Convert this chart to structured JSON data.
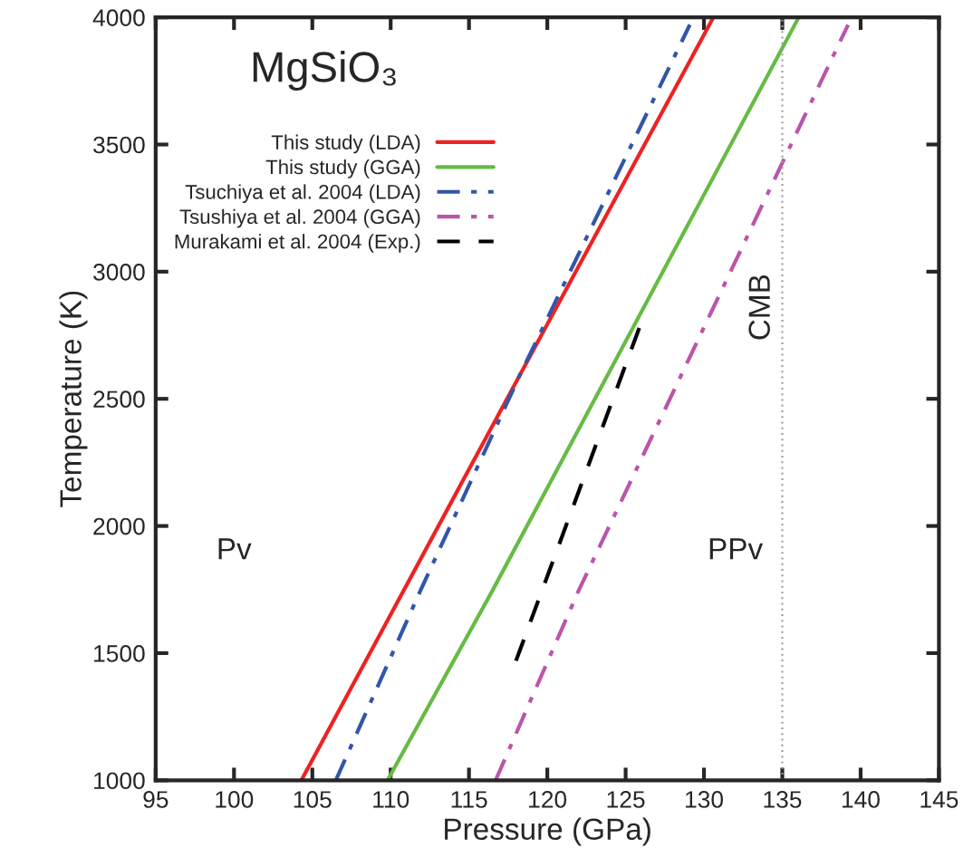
{
  "chart_data": {
    "type": "line",
    "title": "MgSiO₃",
    "xlabel": "Pressure (GPa)",
    "ylabel": "Temperature (K)",
    "series": [
      {
        "name": "This study (LDA)",
        "color": "#ee2222",
        "line_style": "solid",
        "x": [
          104.3,
          118.3,
          130.2,
          130.6
        ],
        "values": [
          1000,
          2600,
          3954,
          4000
        ]
      },
      {
        "name": "This study (GGA)",
        "color": "#66bb44",
        "line_style": "solid",
        "x": [
          109.8,
          116.5,
          136.05
        ],
        "values": [
          1000,
          1746,
          4000
        ]
      },
      {
        "name": "Tsuchiya et al. 2004 (LDA)",
        "color": "#3355aa",
        "line_style": "dashdot",
        "x": [
          106.5,
          111.9,
          118.3,
          129.1
        ],
        "values": [
          1000,
          1746,
          2600,
          3971
        ]
      },
      {
        "name": "Tsushiya et al. 2004 (GGA)",
        "color": "#bb55aa",
        "line_style": "dashdot",
        "x": [
          116.7,
          122.0,
          139.2
        ],
        "values": [
          1000,
          1746,
          3971
        ]
      },
      {
        "name": "Murakami et al. 2004 (Exp.)",
        "color": "#000000",
        "line_style": "dashed",
        "x": [
          118.0,
          126.0
        ],
        "values": [
          1470,
          2800
        ]
      }
    ],
    "xlim": [
      95,
      145
    ],
    "xticks": [
      95,
      100,
      105,
      110,
      115,
      120,
      125,
      130,
      135,
      140,
      145
    ],
    "ylim": [
      1000,
      4000
    ],
    "yticks": [
      1000,
      1500,
      2000,
      2500,
      3000,
      3500,
      4000
    ],
    "ref_lines": [
      {
        "axis": "x",
        "value": 135,
        "label": "CMB",
        "color": "#999999",
        "line_style": "dotted"
      }
    ],
    "annotations": [
      "Pv",
      "PPv"
    ],
    "legend": "top left",
    "grid": false,
    "marker": "none"
  }
}
